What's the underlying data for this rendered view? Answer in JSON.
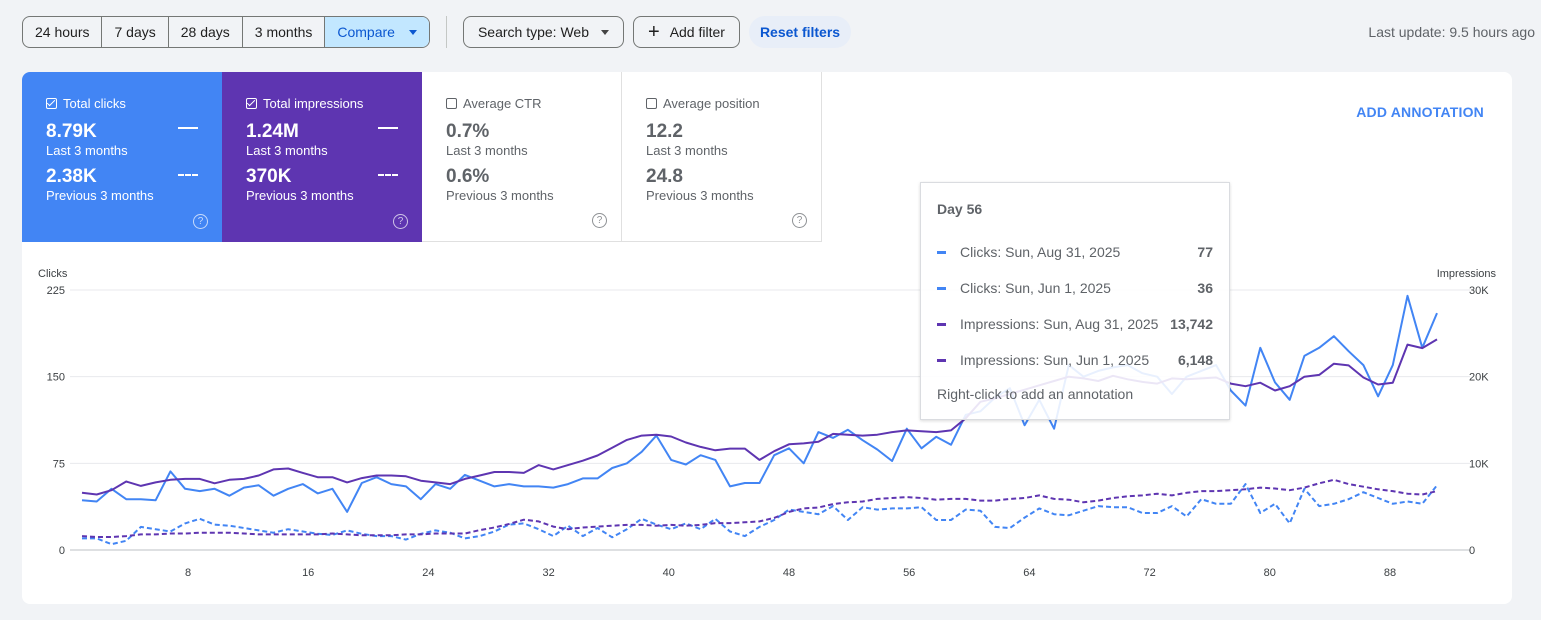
{
  "toolbar": {
    "ranges": [
      "24 hours",
      "7 days",
      "28 days",
      "3 months"
    ],
    "compare_label": "Compare",
    "search_type_label": "Search type: Web",
    "add_filter_label": "Add filter",
    "reset_label": "Reset filters"
  },
  "last_update": "Last update: 9.5 hours ago",
  "metrics": [
    {
      "label": "Total clicks",
      "checked": true,
      "value": "8.79K",
      "period": "Last 3 months",
      "prev_value": "2.38K",
      "prev_period": "Previous 3 months"
    },
    {
      "label": "Total impressions",
      "checked": true,
      "value": "1.24M",
      "period": "Last 3 months",
      "prev_value": "370K",
      "prev_period": "Previous 3 months"
    },
    {
      "label": "Average CTR",
      "checked": false,
      "value": "0.7%",
      "period": "Last 3 months",
      "prev_value": "0.6%",
      "prev_period": "Previous 3 months"
    },
    {
      "label": "Average position",
      "checked": false,
      "value": "12.2",
      "period": "Last 3 months",
      "prev_value": "24.8",
      "prev_period": "Previous 3 months"
    }
  ],
  "add_annotation": "ADD ANNOTATION",
  "tooltip": {
    "title": "Day 56",
    "rows": [
      {
        "name": "Clicks: Sun, Aug 31, 2025",
        "value": "77",
        "color": "#4285f4",
        "style": "solid"
      },
      {
        "name": "Clicks: Sun, Jun 1, 2025",
        "value": "36",
        "color": "#4285f4",
        "style": "dashed"
      },
      {
        "name": "Impressions: Sun, Aug 31, 2025",
        "value": "13,742",
        "color": "#5e35b1",
        "style": "solid"
      },
      {
        "name": "Impressions: Sun, Jun 1, 2025",
        "value": "6,148",
        "color": "#5e35b1",
        "style": "dashed"
      }
    ],
    "footer": "Right-click to add an annotation"
  },
  "chart_data": {
    "type": "line",
    "left_axis_label": "Clicks",
    "right_axis_label": "Impressions",
    "left_ticks": [
      "0",
      "75",
      "150",
      "225"
    ],
    "right_ticks": [
      "0",
      "10K",
      "20K",
      "30K"
    ],
    "x_ticks": [
      "8",
      "16",
      "24",
      "32",
      "40",
      "48",
      "56",
      "64",
      "72",
      "80",
      "88"
    ],
    "left_ylim": [
      0,
      225
    ],
    "right_ylim": [
      0,
      30000
    ],
    "xlim": [
      0,
      93
    ],
    "series": [
      {
        "name": "Clicks: Sun, Aug 31, 2025",
        "axis": "left",
        "color": "#4285f4",
        "dashed": false,
        "values": [
          43,
          42,
          53,
          44,
          44,
          43,
          68,
          53,
          51,
          53,
          47,
          54,
          56,
          47,
          53,
          57,
          49,
          53,
          33,
          58,
          63,
          57,
          55,
          44,
          57,
          53,
          65,
          60,
          55,
          57,
          55,
          55,
          54,
          57,
          62,
          62,
          71,
          75,
          85,
          99,
          78,
          74,
          82,
          78,
          55,
          58,
          58,
          82,
          88,
          75,
          102,
          97,
          104,
          95,
          87,
          77,
          105,
          88,
          98,
          91,
          117,
          120,
          132,
          140,
          108,
          130,
          105,
          160,
          150,
          155,
          158,
          160,
          153,
          150,
          135,
          150,
          155,
          160,
          138,
          125,
          175,
          145,
          130,
          168,
          175,
          185,
          172,
          160,
          133,
          160,
          220,
          175,
          205
        ]
      },
      {
        "name": "Clicks: Sun, Jun 1, 2025",
        "axis": "left",
        "color": "#4285f4",
        "dashed": true,
        "values": [
          10,
          10,
          5,
          8,
          20,
          18,
          16,
          23,
          27,
          22,
          21,
          19,
          17,
          15,
          18,
          16,
          14,
          13,
          17,
          14,
          12,
          12,
          9,
          14,
          17,
          15,
          10,
          12,
          16,
          22,
          23,
          18,
          12,
          21,
          12,
          19,
          11,
          18,
          27,
          22,
          18,
          23,
          18,
          27,
          16,
          12,
          20,
          26,
          35,
          33,
          31,
          38,
          26,
          37,
          35,
          36,
          36,
          37,
          26,
          26,
          35,
          34,
          20,
          19,
          28,
          36,
          31,
          30,
          34,
          38,
          37,
          37,
          32,
          32,
          38,
          29,
          44,
          40,
          40,
          57,
          32,
          40,
          23,
          53,
          38,
          40,
          44,
          50,
          45,
          40,
          42,
          40,
          56
        ]
      },
      {
        "name": "Impressions: Sun, Aug 31, 2025",
        "axis": "right",
        "color": "#5e35b1",
        "dashed": false,
        "values": [
          6600,
          6400,
          6900,
          7900,
          7400,
          7800,
          8100,
          8200,
          8200,
          7700,
          8100,
          8200,
          8600,
          9300,
          9400,
          8900,
          8400,
          8400,
          7800,
          8300,
          8600,
          8600,
          8500,
          8000,
          7800,
          7600,
          8200,
          8600,
          9000,
          9000,
          8900,
          9800,
          9300,
          9800,
          10300,
          10900,
          11800,
          12700,
          13200,
          13300,
          13100,
          12400,
          11900,
          11500,
          11700,
          11700,
          10400,
          11400,
          12200,
          12300,
          12500,
          13400,
          13300,
          13200,
          13300,
          13600,
          13800,
          13700,
          13600,
          13800,
          15200,
          17100,
          17500,
          18000,
          18500,
          19000,
          19500,
          20000,
          19800,
          19500,
          20100,
          19700,
          19400,
          19200,
          19800,
          19700,
          19800,
          19900,
          19200,
          18900,
          19300,
          18400,
          18900,
          20000,
          20200,
          21500,
          21300,
          19900,
          19100,
          19300,
          23700,
          23300,
          24300
        ]
      },
      {
        "name": "Impressions: Sun, Jun 1, 2025",
        "axis": "right",
        "color": "#5e35b1",
        "dashed": true,
        "values": [
          1600,
          1500,
          1500,
          1600,
          1800,
          1800,
          1900,
          1900,
          2000,
          2000,
          2000,
          1900,
          1800,
          1800,
          1800,
          1800,
          1800,
          1900,
          1800,
          1700,
          1700,
          1700,
          1800,
          1800,
          1900,
          1900,
          1900,
          2300,
          2600,
          3000,
          3500,
          3300,
          2700,
          2400,
          2600,
          2700,
          2800,
          2900,
          2900,
          2800,
          2900,
          2800,
          2900,
          3100,
          3100,
          3200,
          3300,
          3700,
          4400,
          4800,
          4900,
          5300,
          5500,
          5600,
          5900,
          6000,
          6100,
          6000,
          5800,
          5900,
          5900,
          5700,
          5700,
          5900,
          6000,
          6300,
          5900,
          5800,
          5500,
          5700,
          6000,
          6200,
          6300,
          6500,
          6300,
          6600,
          6800,
          6800,
          6900,
          7000,
          7200,
          7100,
          6900,
          7200,
          7700,
          8100,
          7600,
          7300,
          7000,
          6800,
          6500,
          6400,
          6800
        ]
      }
    ],
    "grid": true
  }
}
